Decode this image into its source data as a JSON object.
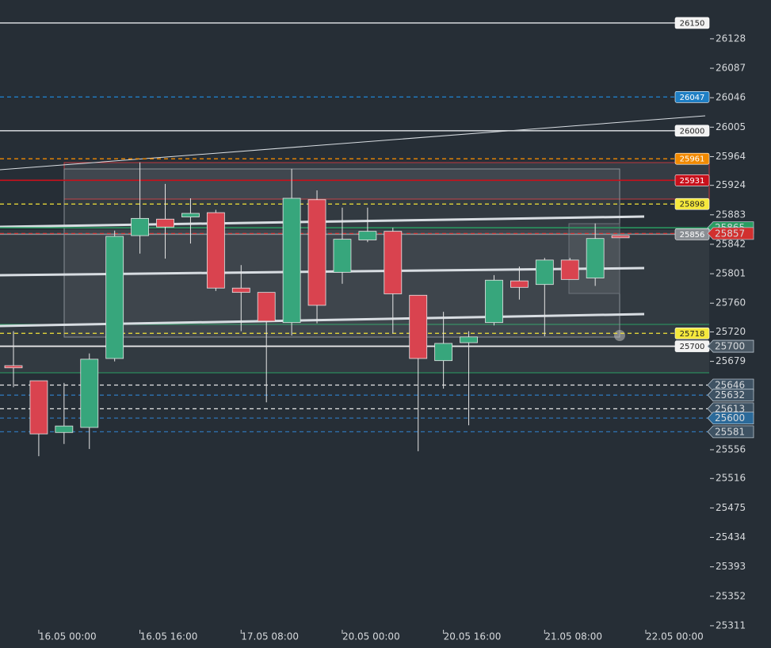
{
  "chart_data": {
    "type": "candlestick",
    "categories": [
      null,
      "16.05 00:00",
      null,
      null,
      null,
      "16.05 16:00",
      null,
      null,
      null,
      "17.05 08:00",
      null,
      null,
      null,
      "20.05 00:00",
      null,
      null,
      null,
      "20.05 16:00",
      null,
      null,
      null,
      "21.05 08:00",
      null,
      null,
      null,
      "22.05 00:00"
    ],
    "open": [
      25673,
      25652,
      25580,
      25587,
      25683,
      25854,
      25877,
      25880,
      25886,
      25781,
      25775,
      25733,
      25904,
      25803,
      25848,
      25860,
      25771,
      25680,
      25705,
      25733,
      25791,
      25786,
      25820,
      25795,
      25854,
      null
    ],
    "high": [
      25721,
      25652,
      25649,
      25690,
      25861,
      25956,
      25926,
      25906,
      25890,
      25813,
      25775,
      25947,
      25917,
      25893,
      25893,
      25865,
      25771,
      25748,
      25721,
      25799,
      25811,
      25823,
      25823,
      25871,
      25854,
      null
    ],
    "low": [
      25643,
      25547,
      25564,
      25557,
      25679,
      25829,
      25822,
      25843,
      25777,
      25721,
      25622,
      25715,
      25732,
      25787,
      25845,
      25718,
      25554,
      25641,
      25590,
      25729,
      25765,
      25714,
      25793,
      25784,
      25851,
      null
    ],
    "close": [
      25670,
      25578,
      25589,
      25682,
      25853,
      25878,
      25866,
      25885,
      25781,
      25775,
      25735,
      25906,
      25757,
      25849,
      25860,
      25773,
      25683,
      25704,
      25713,
      25792,
      25782,
      25820,
      25793,
      25850,
      25851,
      null
    ],
    "up_color": "#37a67c",
    "down_color": "#d9434f",
    "ylim": [
      25280,
      26182
    ],
    "yticks": [
      26128,
      26087,
      26046,
      26005,
      25964,
      25924,
      25883,
      25842,
      25801,
      25760,
      25720,
      25679,
      25556,
      25516,
      25475,
      25434,
      25393,
      25352,
      25311
    ],
    "levels": [
      {
        "value": 26150,
        "color": "#c8ccd0",
        "dashed": false,
        "label_color": "#f2f2f2",
        "label_style": "box"
      },
      {
        "value": 26047,
        "color": "#1f86d6",
        "dashed": true,
        "label_color": "#1f7fc4",
        "label_style": "box"
      },
      {
        "value": 26000,
        "color": "#c8ccd0",
        "dashed": false,
        "label_color": "#f2f2f2",
        "label_style": "box"
      },
      {
        "value": 25961,
        "color": "#f28a00",
        "dashed": true,
        "label_color": "#f28a00",
        "label_style": "box"
      },
      {
        "value": 25931,
        "color": "#c8101b",
        "dashed": false,
        "label_color": "#c8101b",
        "label_style": "box"
      },
      {
        "value": 25898,
        "color": "#f3e33a",
        "dashed": true,
        "label_color": "#f5e83c",
        "label_style": "box"
      },
      {
        "value": 25865,
        "color": "#2a9d62",
        "dashed": false,
        "label_color": "#2a9d62",
        "label_style": "pointer"
      },
      {
        "value": 25856,
        "color": "#8a8f94",
        "dashed": false,
        "label_color": "#8a8f94",
        "label_style": "box"
      },
      {
        "value": 25857,
        "color": "#d73a3a",
        "dashed": true,
        "label_color": "#d1302f",
        "label_style": "pointer"
      },
      {
        "value": 25718,
        "color": "#f3e33a",
        "dashed": true,
        "label_color": "#f5e83c",
        "label_style": "box"
      },
      {
        "value": 25700,
        "color": "#e8e8e8",
        "dashed": false,
        "label_color": "#f2f2f2",
        "label_style": "box"
      },
      {
        "value": 25700,
        "color": "#e8e8e8",
        "dashed": false,
        "label_color": "#4a5864",
        "label_style": "pointer"
      },
      {
        "value": 25646,
        "color": "#e8e8e8",
        "dashed": true,
        "label_color": "#3e5263",
        "label_style": "pointer"
      },
      {
        "value": 25632,
        "color": "#2f74b5",
        "dashed": true,
        "label_color": "#3e5263",
        "label_style": "pointer"
      },
      {
        "value": 25613,
        "color": "#e8e8e8",
        "dashed": true,
        "label_color": "#3e5263",
        "label_style": "pointer"
      },
      {
        "value": 25600,
        "color": "#2f74b5",
        "dashed": true,
        "label_color": "#2b6a9a",
        "label_style": "pointer"
      },
      {
        "value": 25581,
        "color": "#2f74b5",
        "dashed": true,
        "label_color": "#3e5263",
        "label_style": "pointer"
      }
    ]
  }
}
